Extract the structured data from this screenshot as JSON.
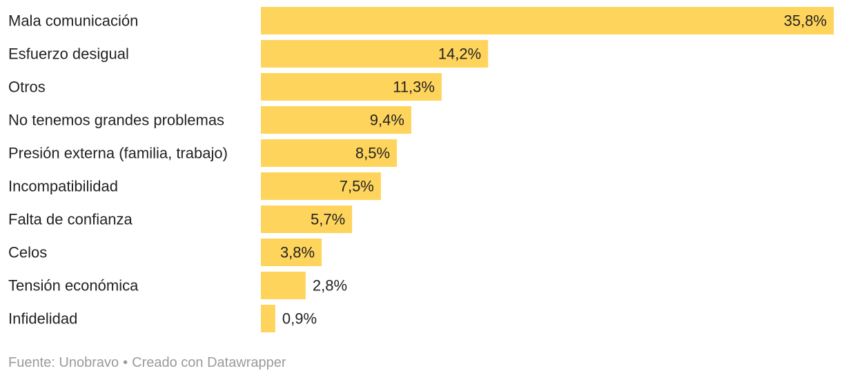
{
  "chart_data": {
    "type": "bar",
    "orientation": "horizontal",
    "categories": [
      "Mala comunicación",
      "Esfuerzo desigual",
      "Otros",
      "No tenemos grandes problemas",
      "Presión externa (familia, trabajo)",
      "Incompatibilidad",
      "Falta de confianza",
      "Celos",
      "Tensión económica",
      "Infidelidad"
    ],
    "values": [
      35.8,
      14.2,
      11.3,
      9.4,
      8.5,
      7.5,
      5.7,
      3.8,
      2.8,
      0.9
    ],
    "value_labels": [
      "35,8%",
      "14,2%",
      "11,3%",
      "9,4%",
      "8,5%",
      "7,5%",
      "5,7%",
      "3,8%",
      "2,8%",
      "0,9%"
    ],
    "xlim": [
      0,
      35.8
    ],
    "unit": "%",
    "bar_color": "#ffd45c",
    "title": "",
    "xlabel": "",
    "ylabel": ""
  },
  "footer": {
    "source": "Fuente: Unobravo",
    "separator": "•",
    "credit": "Creado con Datawrapper"
  }
}
